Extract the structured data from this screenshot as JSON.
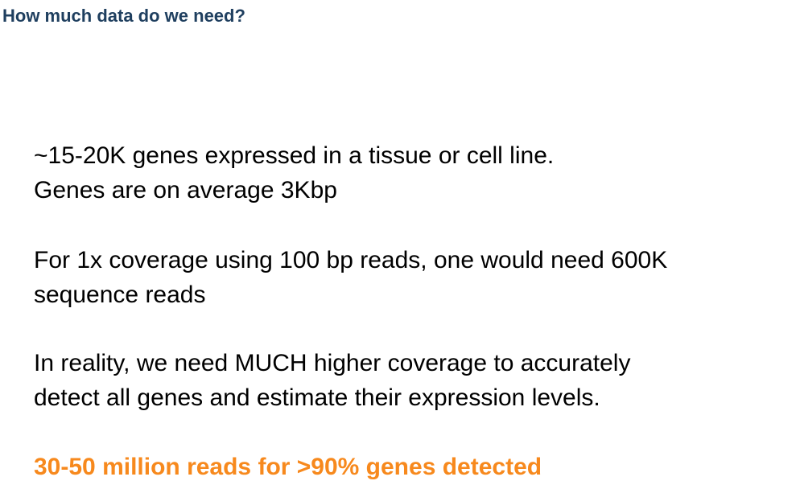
{
  "slide": {
    "title": "How much data do we need?",
    "paragraphs": [
      {
        "lines": [
          "~15-20K genes expressed in a tissue or cell line.",
          "Genes are on average 3Kbp"
        ]
      },
      {
        "lines": [
          "For 1x coverage using 100 bp reads, one would need 600K",
          "sequence reads"
        ]
      },
      {
        "lines": [
          "In reality, we need MUCH higher coverage to accurately",
          "detect all genes and estimate their expression levels."
        ]
      }
    ],
    "highlight": "30-50 million reads for >90% genes detected",
    "colors": {
      "title": "#1f3f5f",
      "body": "#000000",
      "highlight": "#f7891d"
    }
  }
}
